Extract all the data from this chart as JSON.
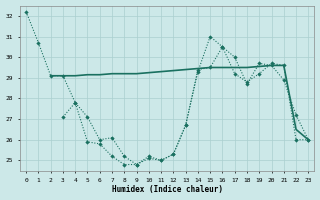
{
  "xlabel": "Humidex (Indice chaleur)",
  "bg_color": "#cce8e8",
  "grid_color": "#aacfcf",
  "line_color": "#1a7060",
  "xlim": [
    -0.5,
    23.5
  ],
  "ylim": [
    24.5,
    32.5
  ],
  "yticks": [
    25,
    26,
    27,
    28,
    29,
    30,
    31,
    32
  ],
  "xticks": [
    0,
    1,
    2,
    3,
    4,
    5,
    6,
    7,
    8,
    9,
    10,
    11,
    12,
    13,
    14,
    15,
    16,
    17,
    18,
    19,
    20,
    21,
    22,
    23
  ],
  "line1_x": [
    0,
    1,
    2,
    3,
    4,
    5,
    6,
    7,
    8,
    9,
    10,
    11,
    12,
    13,
    14,
    15,
    16,
    17,
    18,
    19,
    20,
    21,
    22,
    23
  ],
  "line1_y": [
    32.2,
    30.7,
    29.1,
    29.1,
    27.8,
    25.9,
    25.8,
    25.2,
    24.8,
    24.8,
    25.2,
    25.0,
    25.3,
    26.7,
    29.3,
    31.0,
    30.5,
    30.0,
    28.7,
    29.7,
    29.6,
    28.9,
    27.2,
    26.0
  ],
  "line2_x": [
    3,
    4,
    5,
    6,
    7,
    8,
    9,
    10,
    11,
    12,
    13,
    14,
    15,
    16,
    17,
    18,
    19,
    20,
    21,
    22,
    23
  ],
  "line2_y": [
    27.1,
    27.8,
    27.1,
    26.0,
    26.1,
    25.2,
    24.8,
    25.1,
    25.0,
    25.3,
    26.7,
    29.4,
    29.5,
    30.5,
    29.2,
    28.8,
    29.2,
    29.7,
    29.6,
    26.0,
    26.0
  ],
  "line3_x": [
    2,
    3,
    4,
    5,
    6,
    7,
    8,
    9,
    10,
    11,
    12,
    13,
    14,
    15,
    16,
    17,
    18,
    19,
    20,
    21,
    22,
    23
  ],
  "line3_y": [
    29.1,
    29.1,
    29.1,
    29.15,
    29.15,
    29.2,
    29.2,
    29.2,
    29.25,
    29.3,
    29.35,
    29.4,
    29.45,
    29.5,
    29.5,
    29.5,
    29.5,
    29.55,
    29.6,
    29.6,
    26.5,
    26.0
  ]
}
